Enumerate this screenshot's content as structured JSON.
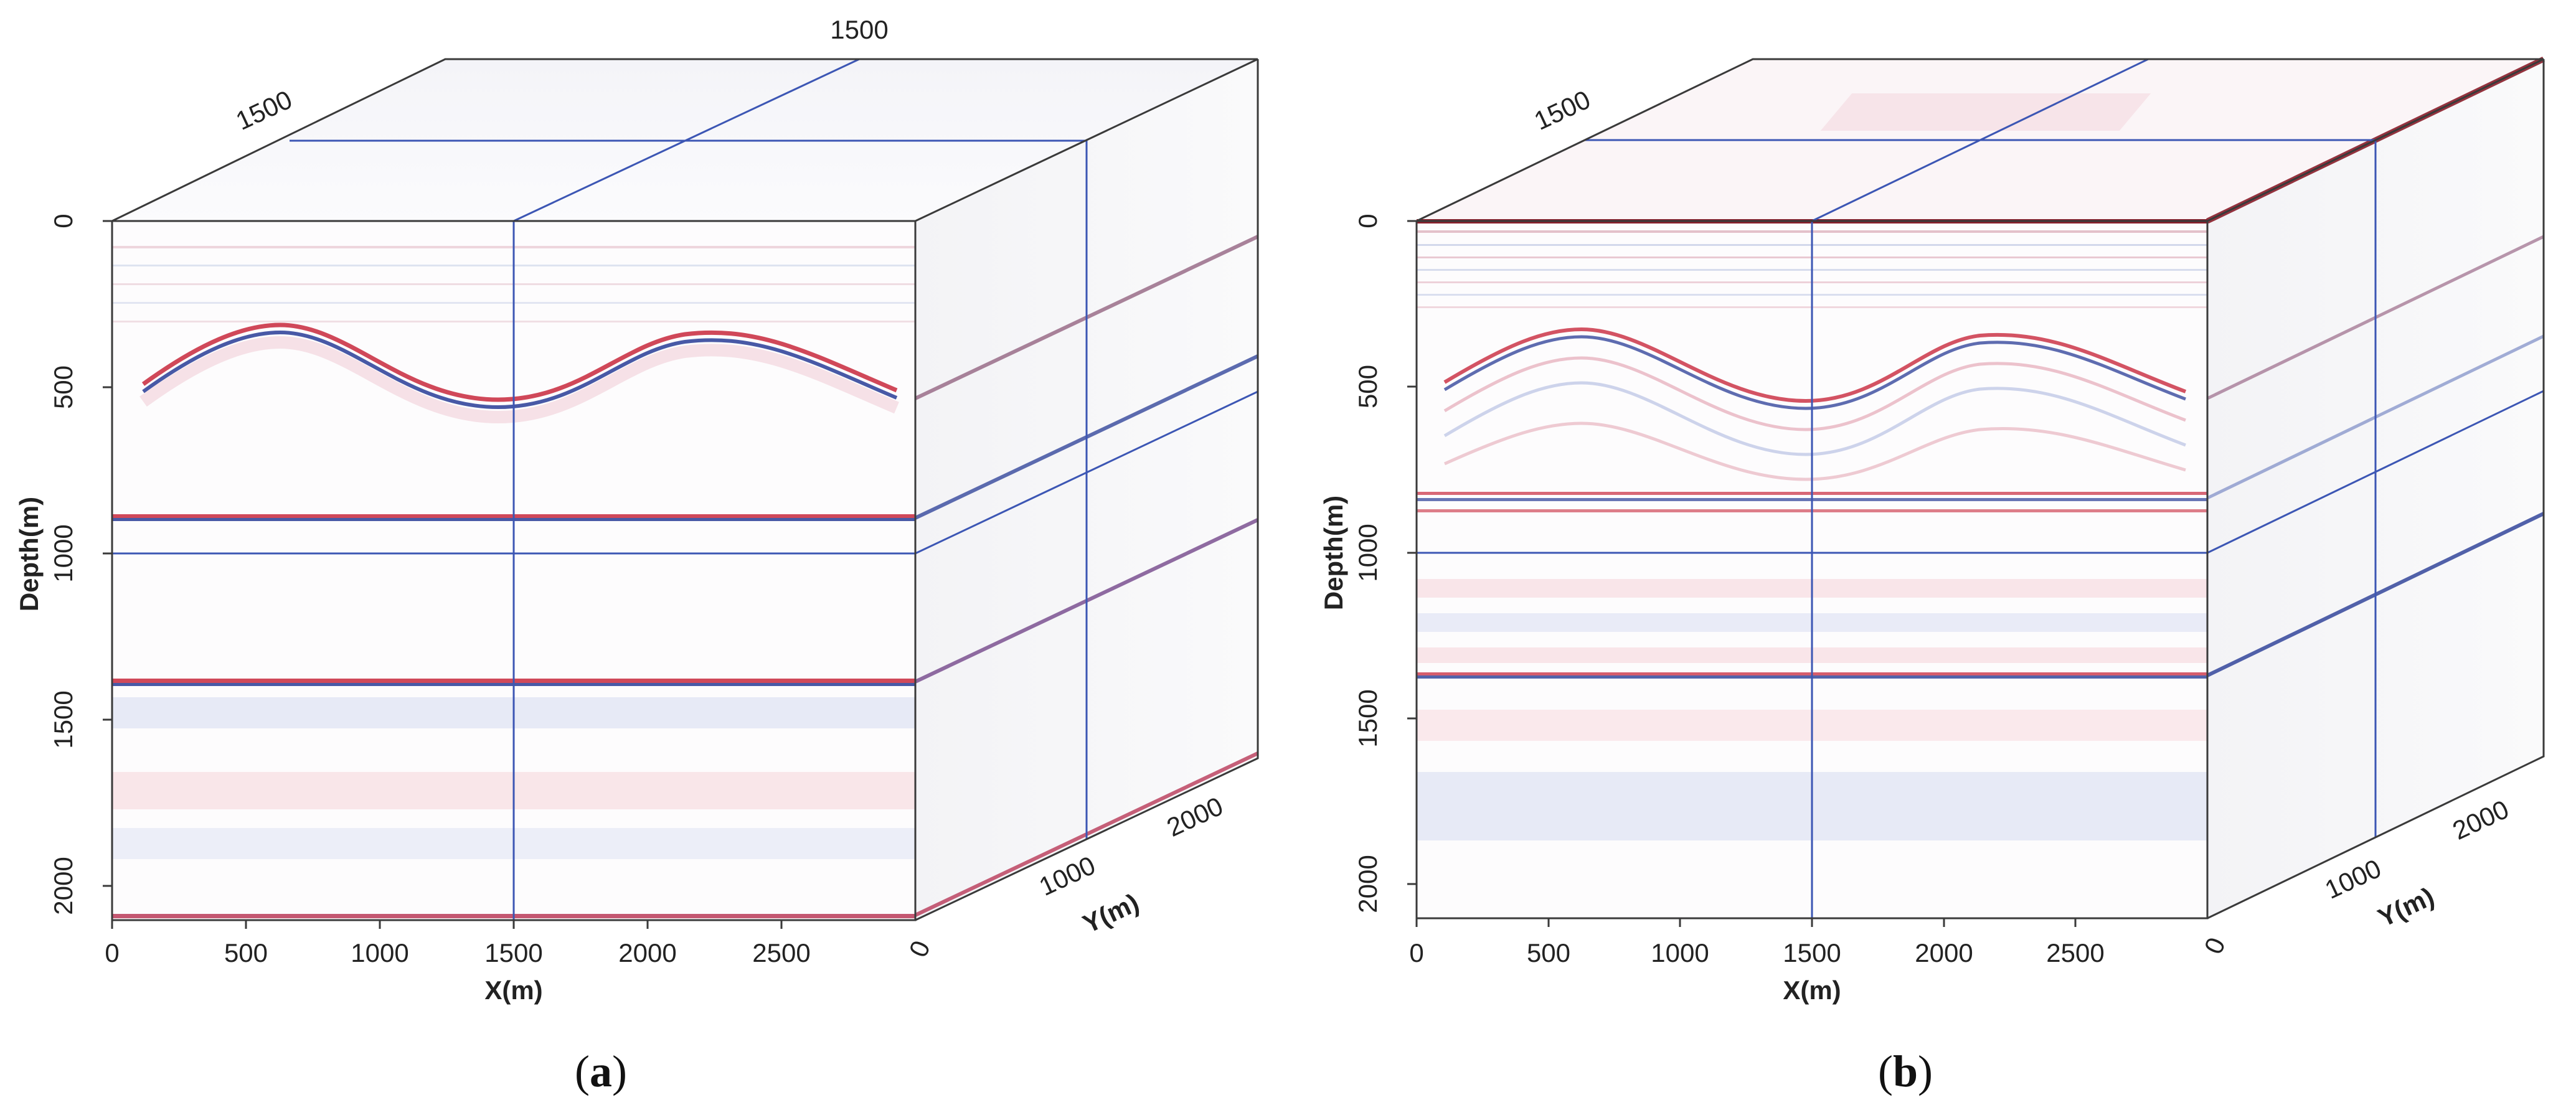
{
  "panels": [
    {
      "caption_letter": "a",
      "depth_axis": {
        "title": "Depth(m)",
        "ticks": [
          "0",
          "500",
          "1000",
          "1500",
          "2000"
        ]
      },
      "x_axis": {
        "title": "X(m)",
        "ticks": [
          "0",
          "500",
          "1000",
          "1500",
          "2000",
          "2500"
        ]
      },
      "y_axis": {
        "title": "Y(m)",
        "ticks": [
          "0",
          "1000",
          "2000"
        ]
      },
      "top_labels": [
        "1500",
        "1500"
      ]
    },
    {
      "caption_letter": "b",
      "depth_axis": {
        "title": "Depth(m)",
        "ticks": [
          "0",
          "500",
          "1000",
          "1500",
          "2000"
        ]
      },
      "x_axis": {
        "title": "X(m)",
        "ticks": [
          "0",
          "500",
          "1000",
          "1500",
          "2000",
          "2500"
        ]
      },
      "y_axis": {
        "title": "Y(m)",
        "ticks": [
          "0",
          "1000",
          "2000"
        ]
      },
      "top_labels": [
        "1500"
      ]
    }
  ],
  "colors": {
    "positive": "#c8283c",
    "negative": "#283c96",
    "slice_line": "#3c56b4",
    "edge": "#3a3a3a"
  }
}
